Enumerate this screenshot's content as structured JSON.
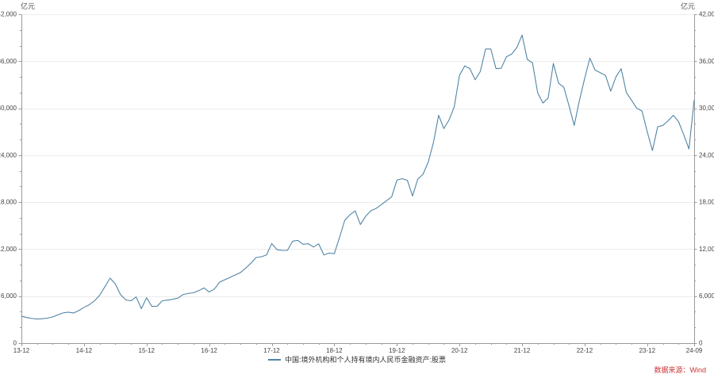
{
  "unit_label_left": "亿元",
  "unit_label_right": "亿元",
  "legend": {
    "series_label": "中国:境外机构和个人持有境内人民币金融资产:股票"
  },
  "source": {
    "label": "数据来源：Wind",
    "color": "#cc3333"
  },
  "colors": {
    "line": "#5185a6",
    "axis": "#9a9a9a",
    "tick_label": "#444444",
    "grid": "#ececec"
  },
  "chart_data": {
    "type": "line",
    "title": "",
    "xlabel": "",
    "ylabel": "亿元",
    "ylim": [
      0,
      42000
    ],
    "y_tick_step": 6000,
    "y_minor_step": 2000,
    "y_tick_labels": [
      "0",
      "6,000",
      "12,000",
      "18,000",
      "24,000",
      "30,000",
      "36,000",
      "42,000"
    ],
    "grid": "horizontal",
    "legend_position": "bottom-center",
    "x_start": "2013-12",
    "x_end": "2024-09",
    "x_minor_step_months": 3,
    "x_ticks": [
      {
        "label": "13-12",
        "m": 0
      },
      {
        "label": "14-12",
        "m": 12
      },
      {
        "label": "15-12",
        "m": 24
      },
      {
        "label": "16-12",
        "m": 36
      },
      {
        "label": "17-12",
        "m": 48
      },
      {
        "label": "18-12",
        "m": 60
      },
      {
        "label": "19-12",
        "m": 72
      },
      {
        "label": "20-12",
        "m": 84
      },
      {
        "label": "21-12",
        "m": 96
      },
      {
        "label": "22-12",
        "m": 108
      },
      {
        "label": "23-12",
        "m": 120
      },
      {
        "label": "24-09",
        "m": 129
      }
    ],
    "series": [
      {
        "name": "中国:境外机构和个人持有境内人民币金融资产:股票",
        "color": "#5185a6",
        "values": [
          3450,
          3270,
          3150,
          3080,
          3120,
          3200,
          3350,
          3620,
          3860,
          3950,
          3850,
          4160,
          4560,
          4900,
          5400,
          6100,
          7200,
          8300,
          7560,
          6200,
          5530,
          5400,
          5900,
          4400,
          5800,
          4700,
          4700,
          5400,
          5500,
          5600,
          5750,
          6200,
          6350,
          6440,
          6700,
          7050,
          6540,
          6900,
          7790,
          8100,
          8400,
          8700,
          9010,
          9580,
          10200,
          10930,
          11030,
          11260,
          12720,
          11940,
          11840,
          11840,
          13020,
          13120,
          12620,
          12700,
          12280,
          12680,
          11260,
          11500,
          11430,
          13500,
          15700,
          16400,
          16900,
          15150,
          16200,
          16900,
          17200,
          17680,
          18180,
          18690,
          20820,
          21000,
          20800,
          18790,
          20950,
          21560,
          23100,
          25600,
          29100,
          27400,
          28500,
          30200,
          34200,
          35400,
          35050,
          33630,
          34700,
          37570,
          37570,
          35050,
          35100,
          36570,
          36910,
          37750,
          39340,
          36230,
          35790,
          31950,
          30660,
          31300,
          35720,
          33190,
          32680,
          30330,
          27800,
          31000,
          33800,
          36400,
          34880,
          34540,
          34200,
          32180,
          34000,
          35050,
          32010,
          31000,
          29990,
          29650,
          27000,
          24590,
          27630,
          27800,
          28400,
          29100,
          28300,
          26610,
          24800,
          31000
        ]
      }
    ]
  }
}
